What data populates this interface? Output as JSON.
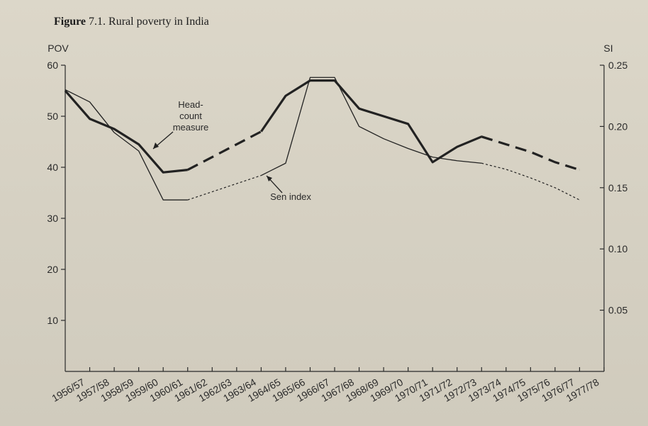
{
  "figure": {
    "label": "Figure",
    "caption": "7.1. Rural poverty in India"
  },
  "chart_data": {
    "type": "line",
    "title": "Figure 7.1. Rural poverty in India",
    "ylabel_left": "POV",
    "ylabel_right": "SI",
    "ylim_left": [
      0,
      60
    ],
    "ylim_right": [
      0,
      0.25
    ],
    "yticks_left": [
      "10",
      "20",
      "30",
      "40",
      "50",
      "60"
    ],
    "yticks_right": [
      "0.05",
      "0.10",
      "0.15",
      "0.20",
      "0.25"
    ],
    "categories": [
      "1956/57",
      "1957/58",
      "1958/59",
      "1959/60",
      "1960/61",
      "1961/62",
      "1962/63",
      "1963/64",
      "1964/65",
      "1965/66",
      "1966/67",
      "1967/68",
      "1968/69",
      "1969/70",
      "1970/71",
      "1971/72",
      "1972/73",
      "1973/74",
      "1974/75",
      "1975/76",
      "1976/77",
      "1977/78"
    ],
    "series": [
      {
        "name": "Head-count measure",
        "axis": "left",
        "values": [
          55,
          49.5,
          47.5,
          44.5,
          39,
          39.5,
          null,
          null,
          47,
          54,
          57,
          57,
          51.5,
          50,
          48.5,
          41,
          44,
          46,
          44.5,
          43,
          41,
          39.5
        ],
        "style": "thick, dashed where data missing"
      },
      {
        "name": "Sen index",
        "axis": "right",
        "values": [
          0.23,
          0.22,
          0.195,
          0.18,
          0.14,
          0.14,
          null,
          null,
          0.16,
          0.17,
          0.24,
          0.24,
          0.2,
          0.19,
          0.182,
          0.175,
          0.172,
          0.17,
          0.165,
          0.158,
          0.15,
          0.14
        ],
        "style": "thin, dotted where data missing"
      }
    ],
    "annotations": [
      "Head-",
      "count",
      "measure",
      "Sen index"
    ],
    "grid": false
  }
}
